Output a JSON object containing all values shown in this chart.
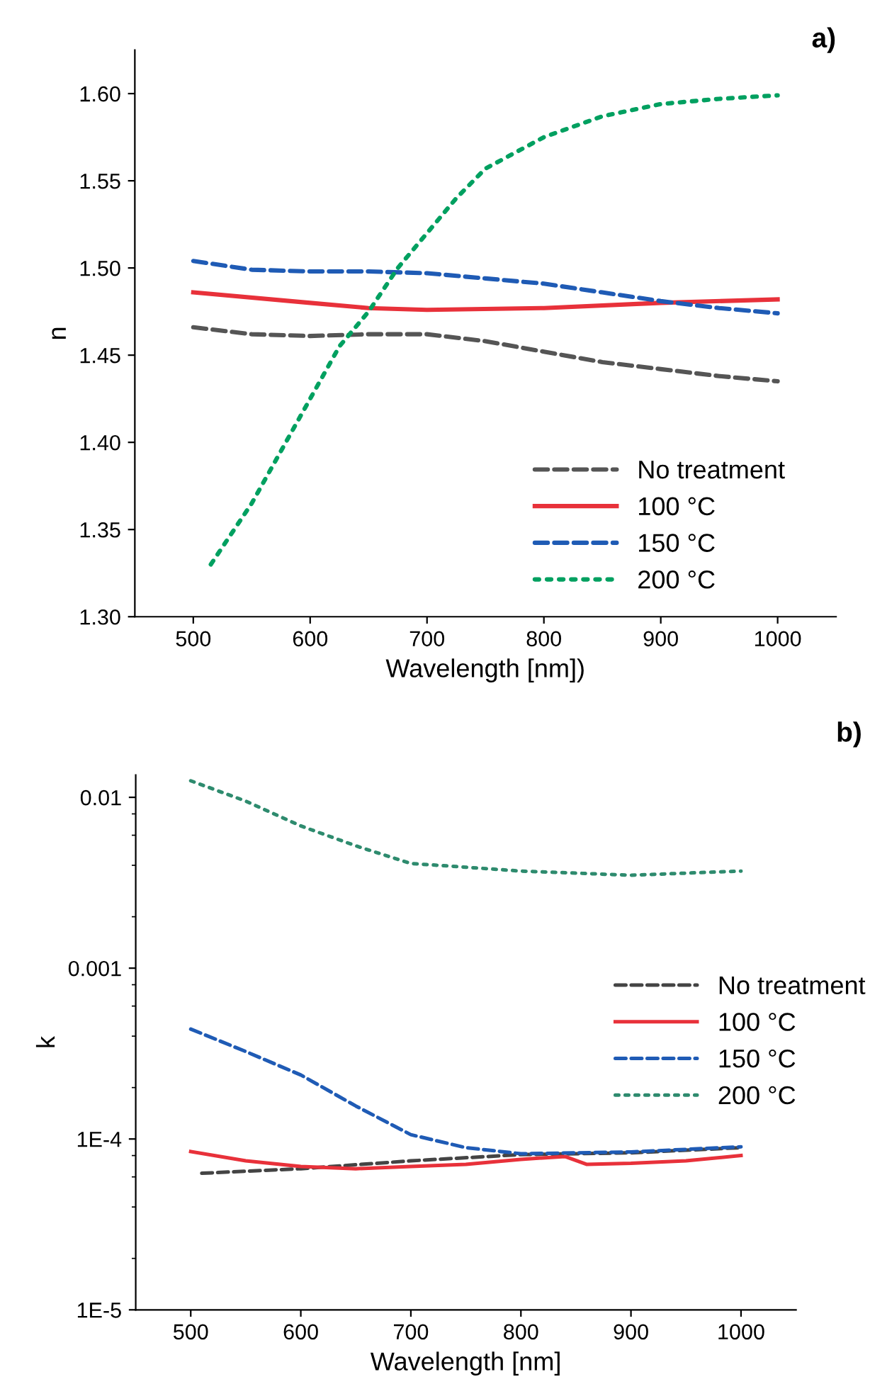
{
  "chart_data": [
    {
      "type": "line",
      "xlabel": "Wavelength [nm])",
      "ylabel": "n",
      "annotations": [
        "a)"
      ],
      "xlim": [
        450,
        1050
      ],
      "xticks": [
        500,
        600,
        700,
        800,
        900,
        1000
      ],
      "ylim": [
        1.3,
        1.625
      ],
      "yticks": [
        {
          "value": 1.3,
          "label": "1.30"
        },
        {
          "value": 1.35,
          "label": "1.35"
        },
        {
          "value": 1.4,
          "label": "1.40"
        },
        {
          "value": 1.45,
          "label": "1.45"
        },
        {
          "value": 1.5,
          "label": "1.50"
        },
        {
          "value": 1.55,
          "label": "1.55"
        },
        {
          "value": 1.6,
          "label": "1.60"
        }
      ],
      "legend": "bottom right",
      "grid": false,
      "series": [
        {
          "name": "No treatment",
          "color": "#555555",
          "line_style": "dashed",
          "x": [
            500,
            550,
            600,
            650,
            700,
            750,
            800,
            850,
            900,
            950,
            1000
          ],
          "values": [
            1.466,
            1.462,
            1.461,
            1.462,
            1.462,
            1.458,
            1.452,
            1.446,
            1.442,
            1.438,
            1.435
          ]
        },
        {
          "name": "100 °C",
          "color": "#e8313a",
          "line_style": "solid",
          "x": [
            500,
            600,
            650,
            700,
            800,
            900,
            1000
          ],
          "values": [
            1.486,
            1.48,
            1.477,
            1.476,
            1.477,
            1.48,
            1.482
          ]
        },
        {
          "name": "150 °C",
          "color": "#1f5bb5",
          "line_style": "dashed",
          "x": [
            500,
            550,
            600,
            650,
            700,
            750,
            800,
            850,
            900,
            950,
            1000
          ],
          "values": [
            1.504,
            1.499,
            1.498,
            1.498,
            1.497,
            1.494,
            1.491,
            1.486,
            1.481,
            1.477,
            1.474
          ]
        },
        {
          "name": "200 °C",
          "color": "#00a060",
          "line_style": "dotted",
          "x": [
            515,
            550,
            575,
            600,
            625,
            650,
            675,
            700,
            725,
            750,
            800,
            850,
            900,
            950,
            1000
          ],
          "values": [
            1.33,
            1.365,
            1.395,
            1.425,
            1.455,
            1.475,
            1.5,
            1.52,
            1.54,
            1.557,
            1.575,
            1.587,
            1.594,
            1.597,
            1.599
          ]
        }
      ]
    },
    {
      "type": "line",
      "xlabel": "Wavelength [nm]",
      "ylabel": "k",
      "annotations": [
        "b)"
      ],
      "log": "y",
      "xlim": [
        450,
        1050
      ],
      "xticks": [
        500,
        600,
        700,
        800,
        900,
        1000
      ],
      "ylim": [
        1e-05,
        0.0135
      ],
      "yticks": [
        {
          "value": 1e-05,
          "label": "1E-5"
        },
        {
          "value": 0.0001,
          "label": "1E-4"
        },
        0.001,
        0.01
      ],
      "legend": "right",
      "grid": false,
      "series": [
        {
          "name": "No treatment",
          "color": "#444444",
          "line_style": "dashed",
          "x": [
            510,
            600,
            700,
            800,
            900,
            1000
          ],
          "values": [
            6.3e-05,
            6.7e-05,
            7.45e-05,
            8.1e-05,
            8.3e-05,
            8.9e-05
          ]
        },
        {
          "name": "100 °C",
          "color": "#e8313a",
          "line_style": "solid",
          "x": [
            500,
            550,
            600,
            650,
            700,
            750,
            800,
            840,
            860,
            900,
            950,
            1000
          ],
          "values": [
            8.45e-05,
            7.45e-05,
            6.9e-05,
            6.7e-05,
            6.9e-05,
            7.1e-05,
            7.6e-05,
            7.9e-05,
            7.1e-05,
            7.2e-05,
            7.45e-05,
            8e-05
          ]
        },
        {
          "name": "150 °C",
          "color": "#1f5bb5",
          "line_style": "dashed",
          "x": [
            500,
            550,
            600,
            650,
            700,
            750,
            800,
            900,
            1000
          ],
          "values": [
            0.00044,
            0.000325,
            0.000237,
            0.000156,
            0.000106,
            8.9e-05,
            8.2e-05,
            8.4e-05,
            9e-05
          ]
        },
        {
          "name": "200 °C",
          "color": "#2e8b6e",
          "line_style": "dotted",
          "x": [
            500,
            550,
            600,
            650,
            700,
            750,
            800,
            850,
            900,
            950,
            1000
          ],
          "values": [
            0.0125,
            0.0095,
            0.0068,
            0.0052,
            0.0041,
            0.0039,
            0.0037,
            0.0036,
            0.0035,
            0.0036,
            0.0037
          ]
        }
      ]
    }
  ]
}
